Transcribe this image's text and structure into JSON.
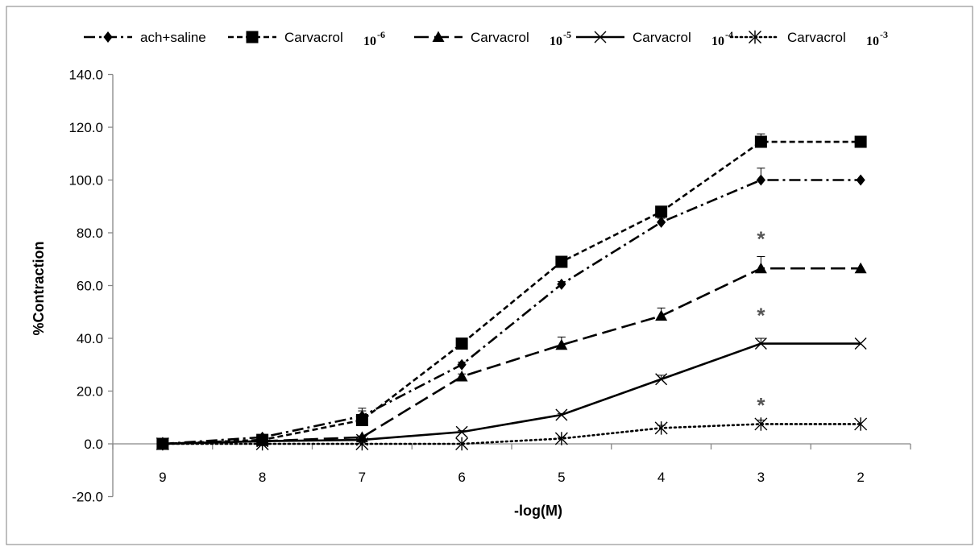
{
  "chart_data": {
    "type": "line",
    "title": "",
    "xlabel": "-log(M)",
    "ylabel": "%Contraction",
    "x": [
      9,
      8,
      7,
      6,
      5,
      4,
      3,
      2
    ],
    "x_tick_labels": [
      "9",
      "8",
      "7",
      "6",
      "5",
      "4",
      "3",
      "2"
    ],
    "x_reversed": true,
    "ylim": [
      -20.0,
      140.0
    ],
    "y_tick_labels": [
      "-20.0",
      "0.0",
      "20.0",
      "40.0",
      "60.0",
      "80.0",
      "100.0",
      "120.0",
      "140.0"
    ],
    "y_ticks": [
      -20,
      0,
      20,
      40,
      60,
      80,
      100,
      120,
      140
    ],
    "grid": false,
    "legend_position": "top",
    "series": [
      {
        "name": "ach+saline",
        "suffix": "",
        "marker": "diamond",
        "dash": "dash-dot",
        "values": [
          0,
          2.5,
          10.5,
          30,
          60.5,
          84,
          100,
          100
        ],
        "errors": [
          0,
          0.5,
          2,
          1,
          1,
          1.5,
          4.5,
          0
        ]
      },
      {
        "name": "Carvacrol",
        "suffix": "-6",
        "marker": "square",
        "dash": "short-dash",
        "values": [
          0,
          1.5,
          9,
          38,
          69,
          88,
          114.5,
          114.5
        ],
        "errors": [
          0,
          0.5,
          4.5,
          1,
          1,
          1,
          3,
          0
        ]
      },
      {
        "name": "Carvacrol",
        "suffix": "-5",
        "marker": "triangle",
        "dash": "long-dash",
        "values": [
          0,
          1,
          2.5,
          25.5,
          37.5,
          48.5,
          66.5,
          66.5
        ],
        "errors": [
          0,
          0.5,
          0.5,
          1,
          3,
          3,
          4.5,
          0
        ]
      },
      {
        "name": "Carvacrol",
        "suffix": "-4",
        "marker": "x",
        "dash": "solid",
        "values": [
          0,
          1,
          1.5,
          4.5,
          11,
          24.5,
          38,
          38
        ],
        "errors": [
          0,
          0.3,
          0.3,
          0.5,
          0.5,
          1.5,
          2,
          0
        ]
      },
      {
        "name": "Carvacrol",
        "suffix": "-3",
        "marker": "asterisk",
        "dash": "dotted",
        "values": [
          0,
          0,
          0,
          0,
          2,
          6,
          7.5,
          7.5
        ],
        "errors": [
          0,
          0,
          0,
          0,
          0.5,
          1,
          1.5,
          0
        ]
      }
    ],
    "annotations": [
      {
        "text": "*",
        "x": 3,
        "y": 78
      },
      {
        "text": "*",
        "x": 3,
        "y": 49
      },
      {
        "text": "*",
        "x": 3,
        "y": 15
      }
    ],
    "legend_exp_base": "10"
  }
}
